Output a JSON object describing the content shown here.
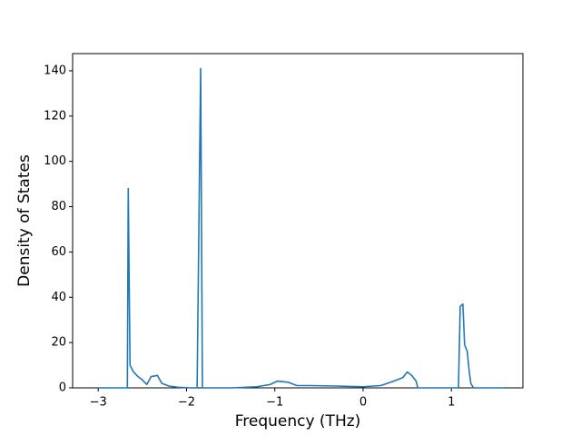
{
  "chart_data": {
    "type": "line",
    "x_label": "Frequency (THz)",
    "y_label": "Density of States",
    "x": [
      -3.0,
      -2.7,
      -2.67,
      -2.66,
      -2.64,
      -2.6,
      -2.55,
      -2.5,
      -2.45,
      -2.4,
      -2.33,
      -2.28,
      -2.2,
      -2.1,
      -1.95,
      -1.88,
      -1.84,
      -1.82,
      -1.5,
      -1.2,
      -1.05,
      -0.97,
      -0.85,
      -0.75,
      -0.6,
      -0.3,
      0.0,
      0.2,
      0.35,
      0.45,
      0.5,
      0.55,
      0.6,
      0.62,
      1.05,
      1.08,
      1.1,
      1.13,
      1.15,
      1.18,
      1.2,
      1.22,
      1.25,
      1.6
    ],
    "values": [
      0,
      0,
      0,
      88,
      10,
      7,
      5,
      3.5,
      1.5,
      5,
      5.5,
      2,
      0.8,
      0.3,
      0,
      0,
      141,
      0,
      0,
      0.5,
      1.5,
      3,
      2.5,
      1,
      1,
      0.8,
      0.5,
      1,
      3,
      4.5,
      7,
      5.5,
      3,
      0,
      0,
      0,
      36,
      37,
      19,
      16,
      8,
      2,
      0,
      0
    ],
    "color": "#1f77b4",
    "xlim": [
      -3.29,
      1.81
    ],
    "xticks": [
      {
        "value": -3,
        "label": "−3"
      },
      {
        "value": -2,
        "label": "−2"
      },
      {
        "value": -1,
        "label": "−1"
      },
      0,
      1
    ],
    "ylim": [
      0,
      147.6
    ],
    "yticks": [
      0,
      20,
      40,
      60,
      80,
      100,
      120,
      140
    ]
  }
}
